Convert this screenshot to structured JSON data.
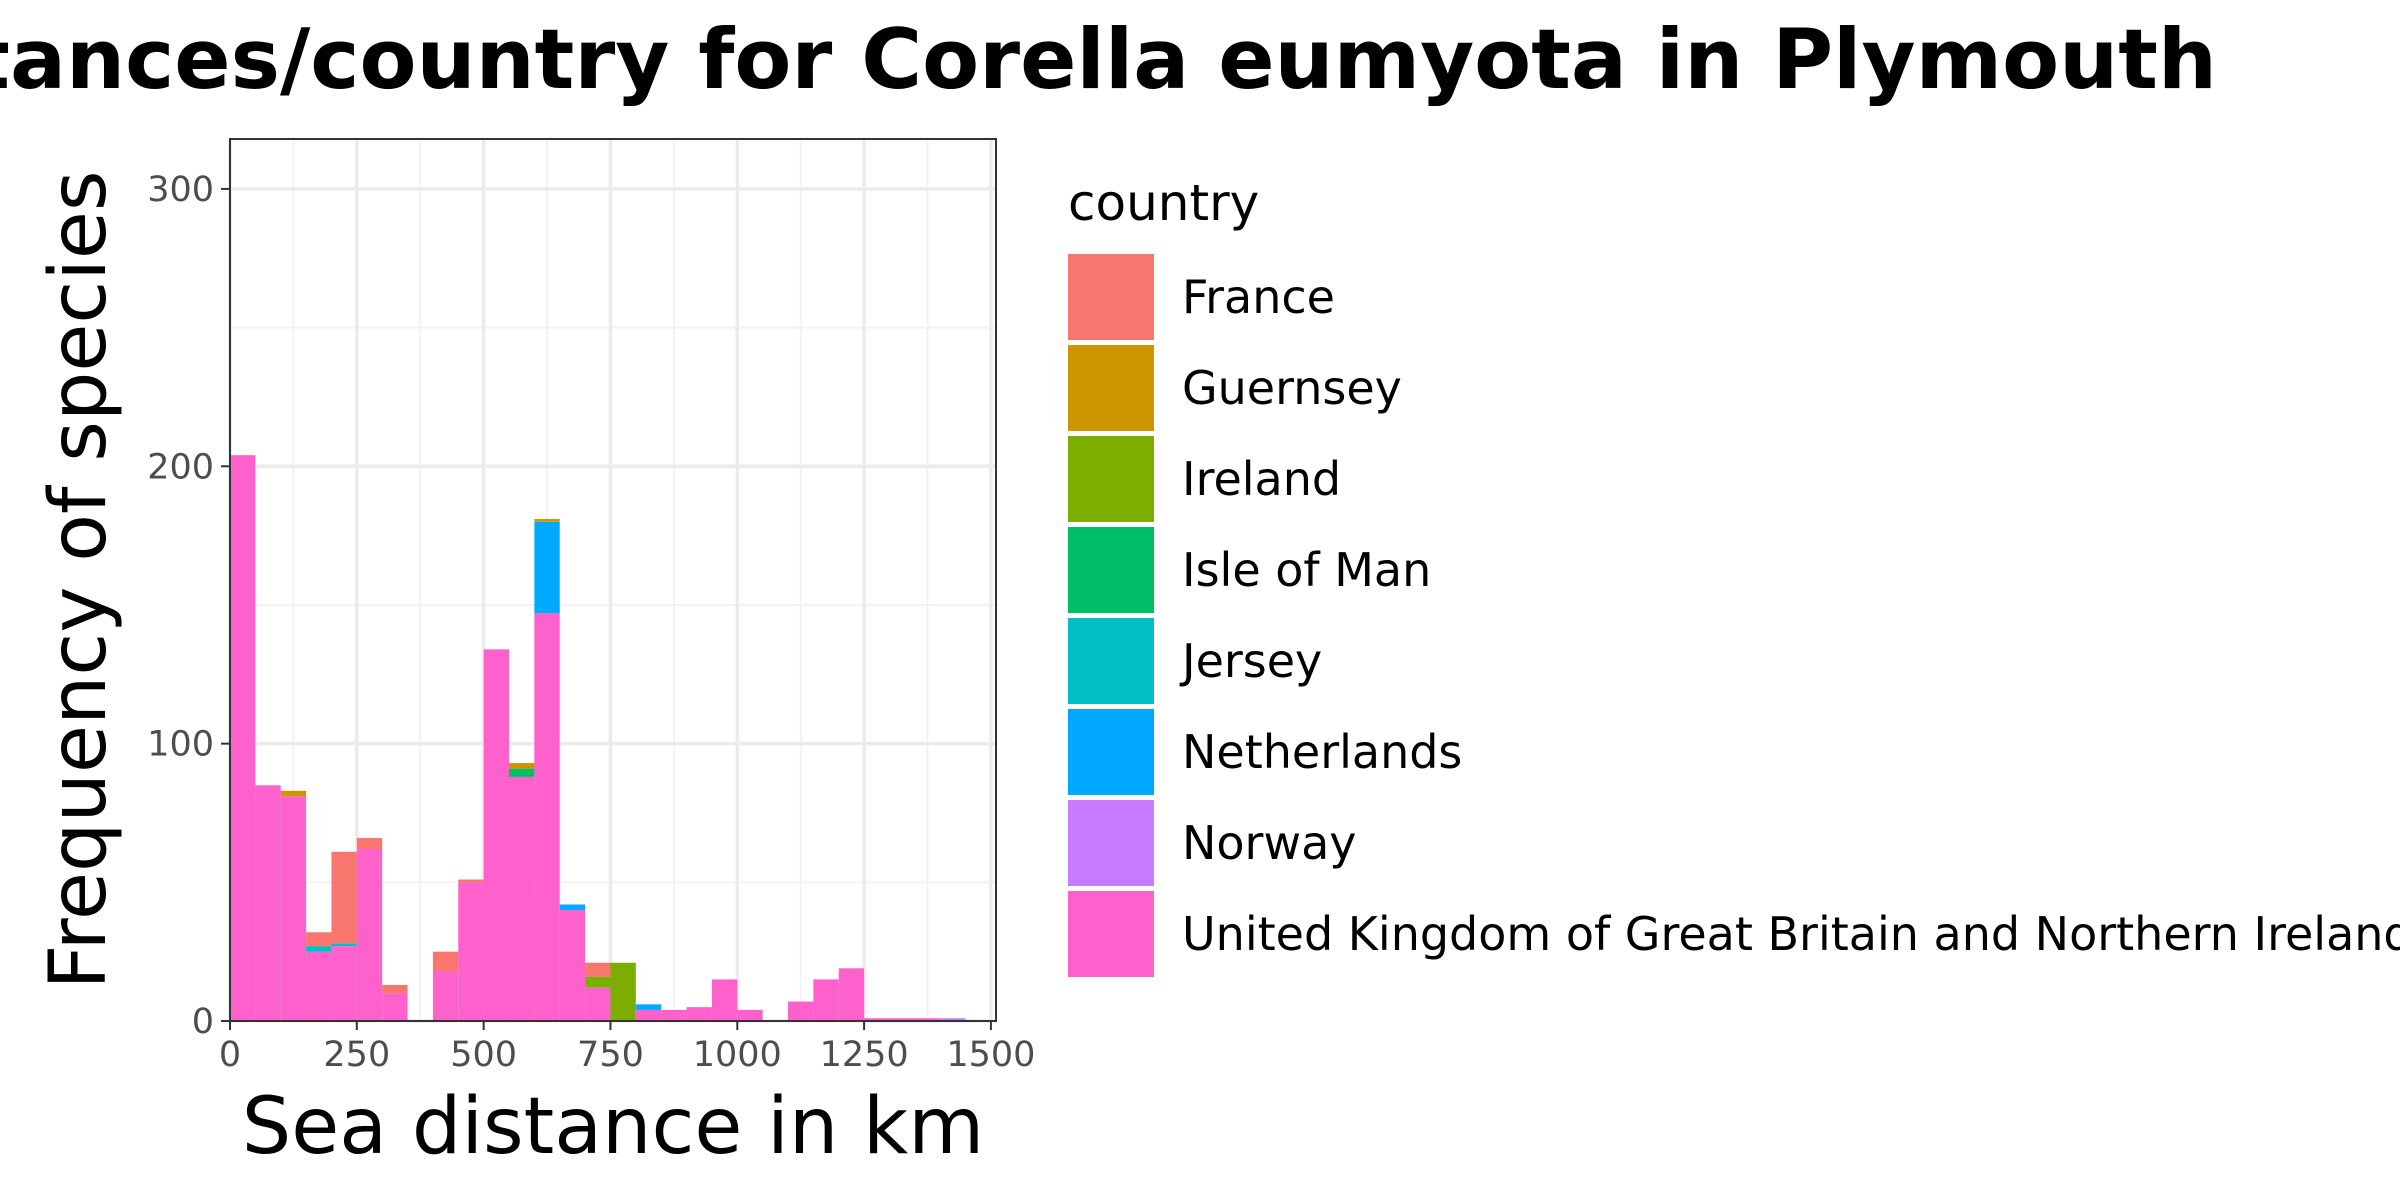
{
  "chart_data": {
    "type": "bar",
    "subtype": "stacked-histogram",
    "title": "distances/country for Corella eumyota in Plymouth",
    "xlabel": "Sea distance in km",
    "ylabel": "Frequency of species",
    "xlim": [
      0,
      1510
    ],
    "ylim": [
      0,
      318
    ],
    "x_ticks": [
      0,
      250,
      500,
      750,
      1000,
      1250,
      1500
    ],
    "x_tick_labels": [
      "0",
      "250",
      "500",
      "750",
      "1000",
      "1250",
      "1500"
    ],
    "y_ticks": [
      0,
      100,
      200,
      300
    ],
    "y_tick_labels": [
      "0",
      "100",
      "200",
      "300"
    ],
    "bin_width": 50,
    "bin_starts": [
      0,
      50,
      100,
      150,
      200,
      250,
      300,
      350,
      400,
      450,
      500,
      550,
      600,
      650,
      700,
      750,
      800,
      850,
      900,
      950,
      1000,
      1050,
      1100,
      1150,
      1200,
      1250,
      1300,
      1350,
      1400,
      1450
    ],
    "legend_title": "country",
    "legend_position": "right",
    "grid": true,
    "series": [
      {
        "name": "France",
        "color": "#F8766D",
        "values": [
          0,
          0,
          0,
          5,
          33,
          4,
          3,
          0,
          7,
          1,
          0,
          0,
          0,
          0,
          5,
          0,
          0,
          0,
          0,
          0,
          0,
          0,
          0,
          0,
          0,
          0,
          0,
          0,
          0,
          0
        ]
      },
      {
        "name": "Guernsey",
        "color": "#CD9600",
        "values": [
          0,
          0,
          2,
          0,
          0,
          0,
          0,
          0,
          0,
          0,
          0,
          2,
          1,
          0,
          0,
          0,
          0,
          0,
          0,
          0,
          0,
          0,
          0,
          0,
          0,
          0,
          0,
          0,
          0,
          0
        ]
      },
      {
        "name": "Ireland",
        "color": "#7CAE00",
        "values": [
          0,
          0,
          0,
          0,
          0,
          0,
          0,
          0,
          0,
          0,
          0,
          0,
          0,
          0,
          4,
          21,
          0,
          0,
          0,
          0,
          0,
          0,
          0,
          0,
          0,
          0,
          0,
          0,
          0,
          0
        ]
      },
      {
        "name": "Isle of Man",
        "color": "#00BE67",
        "values": [
          0,
          0,
          0,
          0,
          0,
          0,
          0,
          0,
          0,
          0,
          0,
          3,
          0,
          0,
          0,
          0,
          0,
          0,
          0,
          0,
          0,
          0,
          0,
          0,
          0,
          0,
          0,
          0,
          0,
          0
        ]
      },
      {
        "name": "Jersey",
        "color": "#00BFC4",
        "values": [
          0,
          0,
          0,
          2,
          1,
          0,
          0,
          0,
          0,
          0,
          0,
          0,
          0,
          0,
          0,
          0,
          0,
          0,
          0,
          0,
          0,
          0,
          0,
          0,
          0,
          0,
          0,
          0,
          0,
          0
        ]
      },
      {
        "name": "Netherlands",
        "color": "#00A9FF",
        "values": [
          0,
          0,
          0,
          0,
          0,
          0,
          0,
          0,
          0,
          0,
          0,
          0,
          33,
          2,
          0,
          0,
          2,
          0,
          0,
          0,
          0,
          0,
          0,
          0,
          0,
          0,
          0,
          0,
          0,
          0
        ]
      },
      {
        "name": "Norway",
        "color": "#C77CFF",
        "values": [
          0,
          0,
          0,
          0,
          0,
          0,
          0,
          0,
          0,
          0,
          0,
          0,
          0,
          0,
          0,
          0,
          0,
          0,
          0,
          0,
          0,
          0,
          0,
          0,
          0,
          0,
          0,
          0,
          1,
          0
        ]
      },
      {
        "name": "United Kingdom of Great Britain and Northern Ireland",
        "color": "#FF61CC",
        "values": [
          204,
          85,
          81,
          25,
          27,
          62,
          10,
          0,
          18,
          50,
          134,
          88,
          147,
          40,
          12,
          0,
          4,
          4,
          5,
          15,
          4,
          0,
          7,
          15,
          19,
          1,
          1,
          1,
          0,
          0
        ]
      }
    ]
  }
}
